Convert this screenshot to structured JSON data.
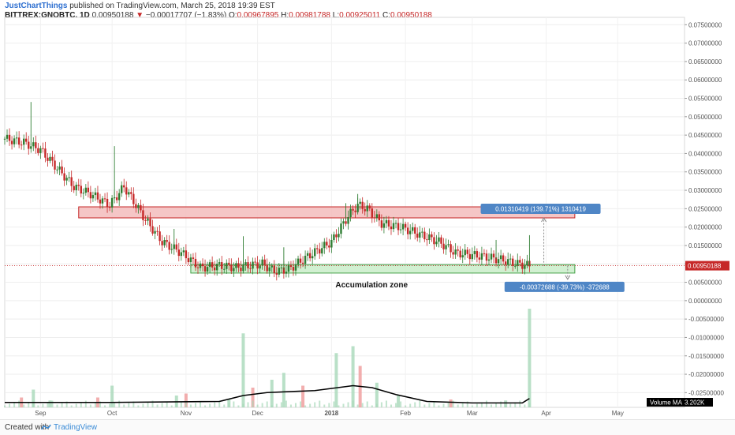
{
  "header": {
    "author": "JustChartThings",
    "published_text": "published on TradingView.com, March 25, 2018 19:39 EST",
    "symbol": "BITTREX:GNOBTC, 1D",
    "last": "0.00950188",
    "change": "−0.00017707 (−1.83%)",
    "o_label": "O:",
    "o_val": "0.00967895",
    "h_label": "H:",
    "h_val": "0.00981788",
    "l_label": "L:",
    "l_val": "0.00925011",
    "c_label": "C:",
    "c_val": "0.00950188"
  },
  "footer": {
    "created_with": "Created with",
    "brand": "TradingView"
  },
  "colors": {
    "up": "#a8d8b9",
    "down": "#ef9a9a",
    "up_candle": "#2e7d32",
    "down_candle": "#c62828",
    "resistance_fill": "#f3bcbc",
    "resistance_stroke": "#c62828",
    "support_fill": "#c9edc9",
    "support_stroke": "#43a047",
    "badge_blue": "#4f86c6",
    "price_badge": "#c62828"
  },
  "chart_data": {
    "type": "candlestick",
    "title": "",
    "y_axis": {
      "ticks": [
        "0.07500000",
        "0.07000000",
        "0.06500000",
        "0.06000000",
        "0.05500000",
        "0.05000000",
        "0.04500000",
        "0.04000000",
        "0.03500000",
        "0.03000000",
        "0.02500000",
        "0.02000000",
        "0.01500000",
        "0.01000000",
        "0.00500000",
        "0.00000000",
        "-0.00500000",
        "-0.01000000",
        "-0.01500000",
        "-0.02000000",
        "-0.02500000"
      ],
      "ylim": [
        -0.029,
        0.077
      ]
    },
    "x_axis": {
      "ticks": [
        "Sep",
        "Oct",
        "Nov",
        "Dec",
        "2018",
        "Feb",
        "Mar",
        "Apr",
        "May"
      ],
      "tick_dates": [
        "2017-09-01",
        "2017-10-01",
        "2017-11-01",
        "2017-12-01",
        "2018-01-01",
        "2018-02-01",
        "2018-03-01",
        "2018-04-01",
        "2018-05-01"
      ],
      "xlim": [
        "2017-08-17",
        "2018-05-29"
      ]
    },
    "price_path": [
      [
        "2017-08-17",
        0.044
      ],
      [
        "2017-08-25",
        0.043
      ],
      [
        "2017-09-01",
        0.041
      ],
      [
        "2017-09-08",
        0.036
      ],
      [
        "2017-09-15",
        0.031
      ],
      [
        "2017-09-22",
        0.029
      ],
      [
        "2017-09-30",
        0.026
      ],
      [
        "2017-10-06",
        0.031
      ],
      [
        "2017-10-10",
        0.027
      ],
      [
        "2017-10-15",
        0.022
      ],
      [
        "2017-10-22",
        0.016
      ],
      [
        "2017-10-30",
        0.013
      ],
      [
        "2017-11-07",
        0.009
      ],
      [
        "2017-11-15",
        0.0095
      ],
      [
        "2017-11-22",
        0.009
      ],
      [
        "2017-11-27",
        0.0095
      ],
      [
        "2017-12-03",
        0.01
      ],
      [
        "2017-12-08",
        0.008
      ],
      [
        "2017-12-14",
        0.0085
      ],
      [
        "2017-12-22",
        0.012
      ],
      [
        "2018-01-01",
        0.016
      ],
      [
        "2018-01-08",
        0.023
      ],
      [
        "2018-01-12",
        0.026
      ],
      [
        "2018-01-16",
        0.025
      ],
      [
        "2018-01-22",
        0.021
      ],
      [
        "2018-01-30",
        0.02
      ],
      [
        "2018-02-07",
        0.018
      ],
      [
        "2018-02-15",
        0.016
      ],
      [
        "2018-02-22",
        0.013
      ],
      [
        "2018-02-28",
        0.0125
      ],
      [
        "2018-03-06",
        0.012
      ],
      [
        "2018-03-14",
        0.011
      ],
      [
        "2018-03-20",
        0.01
      ],
      [
        "2018-03-25",
        0.0095
      ]
    ],
    "price_spikes": [
      [
        "2017-08-28",
        0.054
      ],
      [
        "2017-10-02",
        0.042
      ],
      [
        "2017-10-27",
        0.0195
      ],
      [
        "2017-11-25",
        0.0175
      ],
      [
        "2017-12-12",
        0.0145
      ],
      [
        "2018-01-07",
        0.0265
      ],
      [
        "2018-01-12",
        0.029
      ],
      [
        "2018-03-25",
        0.0178
      ],
      [
        "2018-03-11",
        0.0165
      ]
    ],
    "volume": {
      "ylim": [
        0,
        1
      ],
      "bar_heights": [
        [
          "2017-08-24",
          0.1
        ],
        [
          "2017-08-29",
          0.18
        ],
        [
          "2017-09-05",
          0.07
        ],
        [
          "2017-09-25",
          0.1
        ],
        [
          "2017-10-01",
          0.22
        ],
        [
          "2017-10-28",
          0.12
        ],
        [
          "2017-11-01",
          0.14
        ],
        [
          "2017-11-19",
          0.08
        ],
        [
          "2017-11-25",
          0.75
        ],
        [
          "2017-11-29",
          0.2
        ],
        [
          "2017-12-07",
          0.28
        ],
        [
          "2017-12-12",
          0.35
        ],
        [
          "2017-12-20",
          0.22
        ],
        [
          "2018-01-03",
          0.55
        ],
        [
          "2018-01-10",
          0.62
        ],
        [
          "2018-01-13",
          0.42
        ],
        [
          "2018-01-20",
          0.25
        ],
        [
          "2018-01-29",
          0.12
        ],
        [
          "2018-02-20",
          0.08
        ],
        [
          "2018-03-15",
          0.07
        ],
        [
          "2018-03-25",
          1.0
        ]
      ],
      "ma_label": "Volume MA",
      "ma_value": "3.202K",
      "ma_path": [
        [
          "2017-08-17",
          0.05
        ],
        [
          "2017-09-30",
          0.05
        ],
        [
          "2017-11-15",
          0.06
        ],
        [
          "2017-11-25",
          0.12
        ],
        [
          "2017-12-05",
          0.15
        ],
        [
          "2017-12-25",
          0.17
        ],
        [
          "2018-01-10",
          0.22
        ],
        [
          "2018-01-18",
          0.2
        ],
        [
          "2018-01-28",
          0.13
        ],
        [
          "2018-02-10",
          0.06
        ],
        [
          "2018-03-01",
          0.045
        ],
        [
          "2018-03-22",
          0.045
        ],
        [
          "2018-03-25",
          0.09
        ]
      ]
    },
    "zones": [
      {
        "name": "",
        "y_low": 0.0225,
        "y_high": 0.0255,
        "x_start": "2017-09-17",
        "x_end": "2018-04-13",
        "kind": "resistance"
      },
      {
        "name": "Accumulation zone",
        "y_low": 0.0075,
        "y_high": 0.0098,
        "x_start": "2017-11-03",
        "x_end": "2018-04-13",
        "kind": "support"
      }
    ],
    "measures": [
      {
        "label": "0.01310419 (139.71%) 1310419",
        "from": 0.0095,
        "to": 0.0225,
        "x": "2018-03-31"
      },
      {
        "label": "-0.00372688 (-39.73%) -372688",
        "from": 0.0095,
        "to": 0.0058,
        "x": "2018-04-10"
      }
    ],
    "last_price": 0.00950188,
    "last_price_label": "0.00950188"
  }
}
